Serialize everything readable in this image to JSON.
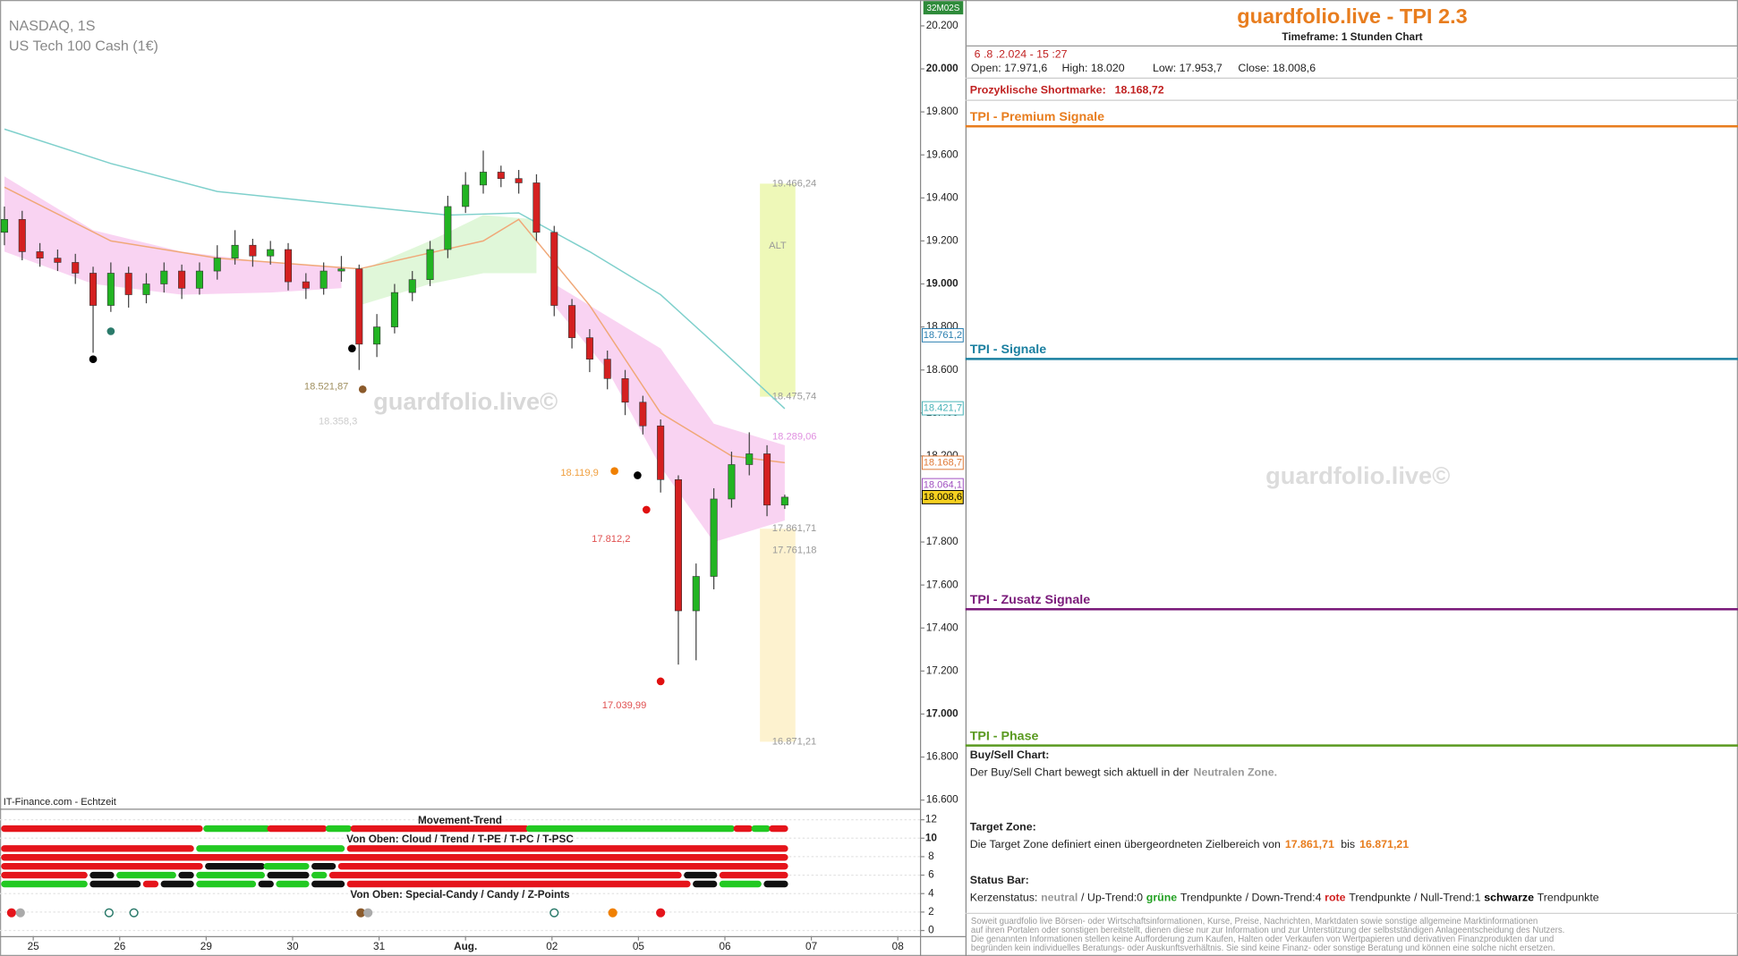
{
  "header": {
    "symbol": "NASDAQ, 1S",
    "instrument": "US Tech 100 Cash (1€)",
    "source": "IT-Finance.com - Echtzeit",
    "watermark": "guardfolio.live©",
    "badge": "32M02S"
  },
  "chart_data": {
    "type": "candlestick",
    "categories": [
      "25",
      "26",
      "29",
      "30",
      "31",
      "Aug.",
      "02",
      "05",
      "06",
      "07",
      "08"
    ],
    "ylim": [
      16560,
      20310
    ],
    "yticks": [
      {
        "value": 16600,
        "label": "16.600"
      },
      {
        "value": 16800,
        "label": "16.800"
      },
      {
        "value": 17000,
        "label": "17.000"
      },
      {
        "value": 17200,
        "label": "17.200"
      },
      {
        "value": 17400,
        "label": "17.400"
      },
      {
        "value": 17600,
        "label": "17.600"
      },
      {
        "value": 17800,
        "label": "17.800"
      },
      {
        "value": 18000,
        "label": "18.000"
      },
      {
        "value": 18200,
        "label": "18.200"
      },
      {
        "value": 18400,
        "label": "18.400"
      },
      {
        "value": 18600,
        "label": "18.600"
      },
      {
        "value": 18800,
        "label": "18.800"
      },
      {
        "value": 19000,
        "label": "19.000"
      },
      {
        "value": 19200,
        "label": "19.200"
      },
      {
        "value": 19400,
        "label": "19.400"
      },
      {
        "value": 19600,
        "label": "19.600"
      },
      {
        "value": 19800,
        "label": "19.800"
      },
      {
        "value": 20000,
        "label": "20.000"
      },
      {
        "value": 20200,
        "label": "20.200"
      }
    ],
    "up_color": "#22b422",
    "down_color": "#d42020",
    "open": [
      19240,
      19300,
      19150,
      19120,
      19100,
      19050,
      18900,
      19050,
      18950,
      19000,
      19060,
      18980,
      19060,
      19120,
      19180,
      19130,
      19160,
      19010,
      18980,
      19060,
      19070,
      18720,
      18800,
      18960,
      19020,
      19160,
      19360,
      19460,
      19520,
      19490,
      19470,
      19240,
      18900,
      18750,
      18650,
      18560,
      18450,
      18340,
      18090,
      17480,
      17640,
      18000,
      18160,
      18210,
      17971.6
    ],
    "high": [
      19360,
      19340,
      19190,
      19160,
      19140,
      19080,
      19100,
      19080,
      19050,
      19100,
      19090,
      19100,
      19180,
      19250,
      19210,
      19200,
      19190,
      19050,
      19100,
      19130,
      19090,
      18860,
      19000,
      19060,
      19200,
      19410,
      19520,
      19620,
      19550,
      19530,
      19510,
      19270,
      18930,
      18790,
      18690,
      18600,
      18480,
      18370,
      18110,
      17700,
      18050,
      18220,
      18310,
      18250,
      18020
    ],
    "low": [
      19180,
      19110,
      19080,
      19060,
      19000,
      18680,
      18870,
      18890,
      18910,
      18960,
      18930,
      18950,
      19020,
      19090,
      19080,
      19090,
      18970,
      18930,
      18950,
      19010,
      18600,
      18660,
      18770,
      18920,
      18990,
      19120,
      19330,
      19420,
      19450,
      19420,
      19200,
      18850,
      18700,
      18590,
      18510,
      18390,
      18300,
      18030,
      17230,
      17250,
      17580,
      17960,
      18110,
      17920,
      17953.7
    ],
    "close": [
      19300,
      19150,
      19120,
      19100,
      19050,
      18900,
      19050,
      18950,
      19000,
      19060,
      18980,
      19060,
      19120,
      19180,
      19130,
      19160,
      19010,
      18980,
      19060,
      19070,
      18720,
      18800,
      18960,
      19020,
      19160,
      19360,
      19460,
      19520,
      19490,
      19470,
      19240,
      18900,
      18750,
      18650,
      18560,
      18450,
      18340,
      18090,
      17480,
      17640,
      18000,
      18160,
      18210,
      17971.6,
      18008.6
    ],
    "clouds": [
      {
        "color": "#f7c8ef",
        "x": [
          0,
          5,
          10,
          15,
          19
        ],
        "upper": [
          19500,
          19250,
          19150,
          19100,
          19080
        ],
        "lower": [
          19150,
          19000,
          18950,
          18960,
          18980
        ]
      },
      {
        "color": "#d8f5d0",
        "x": [
          20,
          24,
          27,
          30
        ],
        "upper": [
          19060,
          19200,
          19320,
          19300
        ],
        "lower": [
          18900,
          19000,
          19050,
          19050
        ]
      },
      {
        "color": "#f7c8ef",
        "x": [
          31,
          34,
          37,
          40,
          44
        ],
        "upper": [
          19000,
          18850,
          18700,
          18350,
          18250
        ],
        "lower": [
          18900,
          18600,
          18150,
          17800,
          17900
        ]
      }
    ],
    "ma_lines": [
      {
        "color": "#7fd0cc",
        "x": [
          0,
          6,
          12,
          19,
          25,
          29,
          33,
          37,
          41,
          44
        ],
        "values": [
          19720,
          19560,
          19430,
          19370,
          19320,
          19330,
          19150,
          18950,
          18650,
          18420
        ]
      },
      {
        "color": "#f0a878",
        "x": [
          0,
          6,
          12,
          20,
          27,
          29,
          33,
          37,
          41,
          44
        ],
        "values": [
          19450,
          19200,
          19120,
          19070,
          19200,
          19300,
          18900,
          18400,
          18200,
          18168.7
        ]
      }
    ],
    "zones": [
      {
        "color": "#eef8b8",
        "x": [
          42.6,
          44.6
        ],
        "top": {
          "value": 19466.24,
          "label": "19.466,24"
        },
        "bottom": {
          "value": 18475.74,
          "label": "18.475,74"
        },
        "text": "ALT"
      },
      {
        "color": "#fdf2cf",
        "x": [
          42.6,
          44.6
        ],
        "top": {
          "value": 17861.71,
          "label": "17.861,71"
        },
        "bottom": {
          "value": 16871.21,
          "label": "16.871,21"
        }
      }
    ],
    "annotations": [
      {
        "x": 43.3,
        "value": 18289.06,
        "label": "18.289,06",
        "color": "#e090e0"
      },
      {
        "x": 43.3,
        "value": 17761.18,
        "label": "17.761,18",
        "color": "#999999"
      },
      {
        "x": 19.4,
        "value": 18521.87,
        "label": "18.521,87",
        "color": "#a09060"
      },
      {
        "x": 19.9,
        "value": 18358.3,
        "label": "18.358,3",
        "color": "#cccccc"
      },
      {
        "x": 33.5,
        "value": 18119.9,
        "label": "18.119,9",
        "color": "#f0a040"
      },
      {
        "x": 35.3,
        "value": 17812.2,
        "label": "17.812,2",
        "color": "#e05050"
      },
      {
        "x": 36.2,
        "value": 17039.99,
        "label": "17.039,99",
        "color": "#e05050"
      }
    ],
    "signals": [
      {
        "x": 5,
        "value": 18650,
        "color": "#000000"
      },
      {
        "x": 6,
        "value": 18780,
        "color": "#2a7a6a"
      },
      {
        "x": 19.6,
        "value": 18700,
        "color": "#000000"
      },
      {
        "x": 20.2,
        "value": 18510,
        "color": "#8b5a2b"
      },
      {
        "x": 34.4,
        "value": 18130,
        "color": "#f08000"
      },
      {
        "x": 35.7,
        "value": 18110,
        "color": "#000000"
      },
      {
        "x": 36.2,
        "value": 17950,
        "color": "#e01010"
      },
      {
        "x": 37,
        "value": 17152,
        "color": "#e01010"
      }
    ],
    "price_tags": [
      {
        "value": 18761.2,
        "label": "18.761,2",
        "color": "#2a7fb0",
        "background": "#ffffff"
      },
      {
        "value": 18421.7,
        "label": "18.421,7",
        "color": "#49b3b8",
        "background": "#ffffff"
      },
      {
        "value": 18168.7,
        "label": "18.168,7",
        "color": "#e07b39",
        "background": "#ffffff"
      },
      {
        "value": 18064.1,
        "label": "18.064,1",
        "color": "#a050c0",
        "background": "#ffffff"
      },
      {
        "value": 18008.6,
        "label": "18.008,6",
        "color": "#000000",
        "background": "#f5d020"
      }
    ]
  },
  "indicator": {
    "titles": [
      "Movement-Trend",
      "Von Oben: Cloud / Trend / T-PE / T-PC / T-PSC",
      "Von Oben: Special-Candy / Candy / Z-Points"
    ],
    "ylim": [
      0,
      12
    ],
    "yticks": [
      12,
      10,
      8,
      6,
      4,
      2,
      0
    ],
    "state_colors": {
      "red": "#e5141b",
      "green": "#22c922",
      "black": "#111111"
    },
    "rows": [
      [
        {
          "state": "red",
          "from": 0,
          "to": 11
        },
        {
          "state": "green",
          "from": 11.4,
          "to": 14.8
        },
        {
          "state": "red",
          "from": 15,
          "to": 18
        },
        {
          "state": "green",
          "from": 18.3,
          "to": 19.4
        },
        {
          "state": "red",
          "from": 19.7,
          "to": 29.4
        },
        {
          "state": "green",
          "from": 29.6,
          "to": 41
        },
        {
          "state": "red",
          "from": 41.3,
          "to": 42
        },
        {
          "state": "green",
          "from": 42.3,
          "to": 43
        },
        {
          "state": "red",
          "from": 43.3,
          "to": 44
        }
      ],
      [
        {
          "state": "red",
          "from": 0,
          "to": 10.5
        },
        {
          "state": "green",
          "from": 11,
          "to": 19
        },
        {
          "state": "red",
          "from": 19.5,
          "to": 44
        }
      ],
      [
        {
          "state": "red",
          "from": 0,
          "to": 44
        }
      ],
      [
        {
          "state": "red",
          "from": 0,
          "to": 11
        },
        {
          "state": "black",
          "from": 11.5,
          "to": 14.5
        },
        {
          "state": "green",
          "from": 14.8,
          "to": 17
        },
        {
          "state": "black",
          "from": 17.5,
          "to": 18.5
        },
        {
          "state": "red",
          "from": 19,
          "to": 44
        }
      ],
      [
        {
          "state": "red",
          "from": 0,
          "to": 4.5
        },
        {
          "state": "black",
          "from": 5,
          "to": 6
        },
        {
          "state": "green",
          "from": 6.5,
          "to": 9.5
        },
        {
          "state": "black",
          "from": 10,
          "to": 10.5
        },
        {
          "state": "green",
          "from": 11,
          "to": 14.5
        },
        {
          "state": "black",
          "from": 15,
          "to": 17
        },
        {
          "state": "green",
          "from": 17.5,
          "to": 18
        },
        {
          "state": "red",
          "from": 18.5,
          "to": 38
        },
        {
          "state": "black",
          "from": 38.5,
          "to": 40
        },
        {
          "state": "red",
          "from": 40.5,
          "to": 44
        }
      ],
      [
        {
          "state": "green",
          "from": 0,
          "to": 4.5
        },
        {
          "state": "black",
          "from": 5,
          "to": 7.5
        },
        {
          "state": "red",
          "from": 8,
          "to": 8.5
        },
        {
          "state": "black",
          "from": 9,
          "to": 10.5
        },
        {
          "state": "green",
          "from": 11,
          "to": 14
        },
        {
          "state": "black",
          "from": 14.5,
          "to": 15
        },
        {
          "state": "green",
          "from": 15.5,
          "to": 17
        },
        {
          "state": "black",
          "from": 17.5,
          "to": 19
        },
        {
          "state": "red",
          "from": 19.5,
          "to": 38.5
        },
        {
          "state": "black",
          "from": 39,
          "to": 40
        },
        {
          "state": "green",
          "from": 40.5,
          "to": 42.5
        },
        {
          "state": "black",
          "from": 43,
          "to": 44
        }
      ]
    ],
    "points": [
      {
        "x": 0.4,
        "color": "#e5141b",
        "hollow": false
      },
      {
        "x": 0.9,
        "color": "#aaaaaa",
        "hollow": false
      },
      {
        "x": 5.9,
        "color": "#2a7a6a",
        "hollow": true
      },
      {
        "x": 7.3,
        "color": "#2a7a6a",
        "hollow": true
      },
      {
        "x": 20.1,
        "color": "#8b5a2b",
        "hollow": false
      },
      {
        "x": 20.5,
        "color": "#aaaaaa",
        "hollow": false
      },
      {
        "x": 31,
        "color": "#2a7a6a",
        "hollow": true
      },
      {
        "x": 34.3,
        "color": "#f08000",
        "hollow": false
      },
      {
        "x": 37,
        "color": "#e5141b",
        "hollow": false
      }
    ]
  },
  "panel": {
    "title": "guardfolio.live - TPI 2.3",
    "timeframe": "Timeframe: 1 Stunden Chart",
    "date": "6 .8 .2.024 - 15 :27",
    "ohlc": [
      "Open: 17.971,6",
      "High:  18.020",
      "Low:  17.953,7",
      "Close: 18.008,6"
    ],
    "short_label": "Prozyklische Shortmarke:",
    "short_value": "18.168,72",
    "sections": [
      {
        "title": "TPI - Premium Signale",
        "color": "#e87d1e"
      },
      {
        "title": "TPI - Signale",
        "color": "#1a7fa0"
      },
      {
        "title": "TPI - Zusatz Signale",
        "color": "#7a1a7a"
      },
      {
        "title": "TPI - Phase",
        "color": "#5a9a20"
      }
    ],
    "watermark": "guardfolio.live©",
    "buysell_title": "Buy/Sell Chart:",
    "buysell_text": "Der Buy/Sell Chart bewegt sich aktuell in der",
    "buysell_zone": "Neutralen Zone.",
    "target_title": "Target Zone:",
    "target_text": "Die Target Zone definiert einen übergeordneten Zielbereich von",
    "target_from": "17.861,71",
    "target_bis": "bis",
    "target_to": "16.871,21",
    "status_title": "Status Bar:",
    "status_parts": [
      "Kerzenstatus:",
      "neutral",
      "/ Up-Trend:0",
      "grüne",
      "Trendpunkte",
      "/ Down-Trend:4",
      "rote",
      "Trendpunkte",
      "/ Null-Trend:1",
      "schwarze",
      "Trendpunkte"
    ],
    "disclaimer": [
      "Soweit guardfolio live Börsen- oder Wirtschaftsinformationen, Kurse, Preise, Nachrichten, Marktdaten sowie sonstige allgemeine Marktinformationen",
      "auf ihren Portalen oder sonstigen bereitstellt, dienen diese nur zur Information und zur Unterstützung der selbstständigen Anlageentscheidung des Nutzers.",
      "Die genannten Informationen stellen keine Aufforderung zum Kaufen, Halten oder Verkaufen von Wertpapieren und derivativen Finanzprodukten dar und",
      "begründen kein individuelles Beratungs- oder Auskunftsverhältnis. Sie sind keine Finanz- oder sonstige Beratung und können eine solche nicht ersetzen."
    ]
  }
}
